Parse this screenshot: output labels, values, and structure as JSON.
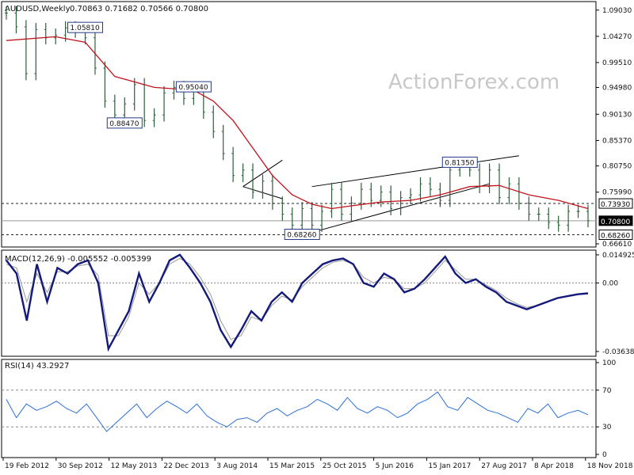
{
  "header": {
    "symbol": "AUDUSD,Weekly",
    "ohlc": "0.70863 0.71682 0.70566 0.70800"
  },
  "watermark": "ActionForex.com",
  "chart_data": [
    {
      "type": "candlestick",
      "title": "AUDUSD,Weekly 0.70863 0.71682 0.70566 0.70800",
      "ylim": [
        0.6661,
        1.1
      ],
      "y_ticks": [
        "1.09030",
        "1.04270",
        "0.99510",
        "0.94980",
        "0.90130",
        "0.85370",
        "0.80750",
        "0.75990",
        "0.66610"
      ],
      "x_ticks": [
        "19 Feb 2012",
        "30 Sep 2012",
        "12 May 2013",
        "22 Dec 2013",
        "3 Aug 2014",
        "15 Mar 2015",
        "25 Oct 2015",
        "5 Jun 2016",
        "15 Jan 2017",
        "27 Aug 2017",
        "8 Apr 2018",
        "18 Nov 2018"
      ],
      "price_path": [
        [
          0,
          1.085
        ],
        [
          1,
          1.06
        ],
        [
          2,
          0.975
        ],
        [
          3,
          1.055
        ],
        [
          4,
          1.04
        ],
        [
          5,
          1.045
        ],
        [
          6,
          1.058
        ],
        [
          7,
          1.052
        ],
        [
          8,
          1.04
        ],
        [
          9,
          0.985
        ],
        [
          10,
          0.925
        ],
        [
          11,
          0.9
        ],
        [
          12,
          0.92
        ],
        [
          13,
          0.955
        ],
        [
          14,
          0.89
        ],
        [
          15,
          0.9
        ],
        [
          16,
          0.94
        ],
        [
          17,
          0.95
        ],
        [
          18,
          0.93
        ],
        [
          19,
          0.945
        ],
        [
          20,
          0.905
        ],
        [
          21,
          0.87
        ],
        [
          22,
          0.83
        ],
        [
          23,
          0.79
        ],
        [
          24,
          0.8
        ],
        [
          25,
          0.76
        ],
        [
          26,
          0.78
        ],
        [
          27,
          0.74
        ],
        [
          28,
          0.72
        ],
        [
          29,
          0.7
        ],
        [
          30,
          0.73
        ],
        [
          31,
          0.7
        ],
        [
          32,
          0.725
        ],
        [
          33,
          0.765
        ],
        [
          34,
          0.72
        ],
        [
          35,
          0.74
        ],
        [
          36,
          0.765
        ],
        [
          37,
          0.745
        ],
        [
          38,
          0.76
        ],
        [
          39,
          0.73
        ],
        [
          40,
          0.75
        ],
        [
          41,
          0.755
        ],
        [
          42,
          0.775
        ],
        [
          43,
          0.765
        ],
        [
          44,
          0.745
        ],
        [
          45,
          0.8
        ],
        [
          46,
          0.81
        ],
        [
          47,
          0.8
        ],
        [
          48,
          0.77
        ],
        [
          49,
          0.8
        ],
        [
          50,
          0.75
        ],
        [
          51,
          0.775
        ],
        [
          52,
          0.74
        ],
        [
          53,
          0.72
        ],
        [
          54,
          0.72
        ],
        [
          55,
          0.705
        ],
        [
          56,
          0.7
        ],
        [
          57,
          0.725
        ],
        [
          58,
          0.725
        ],
        [
          59,
          0.708
        ]
      ],
      "ma_path": [
        [
          0,
          1.035
        ],
        [
          5,
          1.042
        ],
        [
          8,
          1.032
        ],
        [
          11,
          0.97
        ],
        [
          15,
          0.95
        ],
        [
          19,
          0.945
        ],
        [
          21,
          0.925
        ],
        [
          23,
          0.89
        ],
        [
          25,
          0.84
        ],
        [
          27,
          0.79
        ],
        [
          29,
          0.755
        ],
        [
          31,
          0.738
        ],
        [
          33,
          0.73
        ],
        [
          35,
          0.735
        ],
        [
          38,
          0.742
        ],
        [
          41,
          0.745
        ],
        [
          44,
          0.755
        ],
        [
          47,
          0.77
        ],
        [
          50,
          0.772
        ],
        [
          53,
          0.755
        ],
        [
          56,
          0.745
        ],
        [
          59,
          0.73
        ]
      ],
      "labels": [
        {
          "text": "1.05810",
          "x": 8,
          "y": 1.0581
        },
        {
          "text": "0.95040",
          "x": 19,
          "y": 0.9504
        },
        {
          "text": "0.88470",
          "x": 12,
          "y": 0.8847
        },
        {
          "text": "0.81350",
          "x": 46,
          "y": 0.8135
        },
        {
          "text": "0.68260",
          "x": 30,
          "y": 0.6826
        }
      ],
      "levels": [
        {
          "value": 0.7393,
          "label": "0.73930",
          "style": "dashed",
          "box": "light"
        },
        {
          "value": 0.708,
          "label": "0.70800",
          "style": "solid",
          "box": "dark"
        },
        {
          "value": 0.6826,
          "label": "0.68260",
          "style": "dashed",
          "box": "light"
        }
      ],
      "trendlines": [
        {
          "from": [
            30,
            0.682
          ],
          "to": [
            49,
            0.775
          ]
        },
        {
          "from": [
            31,
            0.77
          ],
          "to": [
            52,
            0.826
          ]
        },
        {
          "from": [
            24,
            0.77
          ],
          "to": [
            28,
            0.818
          ]
        },
        {
          "from": [
            24,
            0.77
          ],
          "to": [
            28,
            0.748
          ]
        }
      ]
    },
    {
      "type": "line",
      "title": "MACD(12,26,9) -0.005552 -0.005399",
      "ylim": [
        -0.0364,
        0.0149
      ],
      "y_ticks": [
        "0.014925",
        "0.00",
        "-0.036389"
      ],
      "series": [
        {
          "name": "MACD",
          "values": [
            0.012,
            0.005,
            -0.02,
            0.01,
            -0.01,
            0.008,
            0.005,
            0.01,
            0.012,
            0.0,
            -0.035,
            -0.025,
            -0.015,
            0.005,
            -0.01,
            0.0,
            0.012,
            0.015,
            0.008,
            0.0,
            -0.01,
            -0.025,
            -0.034,
            -0.025,
            -0.015,
            -0.02,
            -0.01,
            -0.005,
            -0.01,
            -0.0,
            0.005,
            0.01,
            0.012,
            0.013,
            0.01,
            0.0,
            -0.002,
            0.005,
            0.002,
            -0.005,
            -0.003,
            0.002,
            0.008,
            0.014,
            0.005,
            0.0,
            0.002,
            -0.002,
            -0.005,
            -0.01,
            -0.012,
            -0.014,
            -0.012,
            -0.01,
            -0.008,
            -0.007,
            -0.006,
            -0.0055
          ]
        },
        {
          "values": [
            0.01,
            0.008,
            -0.01,
            0.005,
            -0.005,
            0.006,
            0.006,
            0.009,
            0.01,
            0.004,
            -0.028,
            -0.028,
            -0.018,
            0.0,
            -0.006,
            0.0,
            0.01,
            0.013,
            0.01,
            0.003,
            -0.006,
            -0.02,
            -0.03,
            -0.028,
            -0.018,
            -0.02,
            -0.012,
            -0.007,
            -0.009,
            -0.002,
            0.003,
            0.008,
            0.011,
            0.012,
            0.01,
            0.003,
            0.0,
            0.003,
            0.002,
            -0.003,
            -0.003,
            0.0,
            0.006,
            0.012,
            0.007,
            0.002,
            0.002,
            -0.001,
            -0.004,
            -0.008,
            -0.011,
            -0.013,
            -0.012,
            -0.01,
            -0.008,
            -0.007,
            -0.006,
            -0.0054
          ]
        }
      ]
    },
    {
      "type": "line",
      "title": "RSI(14) 43.2927",
      "ylim": [
        0,
        100
      ],
      "y_ticks": [
        "100",
        "70",
        "30",
        "0"
      ],
      "series": [
        {
          "name": "RSI",
          "values": [
            60,
            40,
            55,
            48,
            52,
            58,
            50,
            45,
            55,
            40,
            25,
            35,
            45,
            55,
            40,
            50,
            58,
            52,
            45,
            55,
            42,
            35,
            30,
            38,
            40,
            35,
            45,
            50,
            42,
            48,
            52,
            60,
            55,
            48,
            62,
            50,
            45,
            52,
            48,
            40,
            45,
            55,
            60,
            68,
            52,
            48,
            62,
            55,
            48,
            45,
            40,
            35,
            50,
            45,
            55,
            40,
            45,
            48,
            43.3
          ]
        }
      ]
    }
  ]
}
